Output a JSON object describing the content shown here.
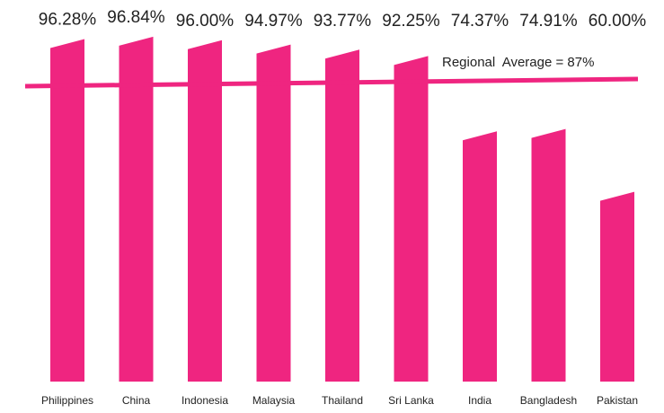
{
  "chart_data": {
    "type": "bar",
    "categories": [
      "Philippines",
      "China",
      "Indonesia",
      "Malaysia",
      "Thailand",
      "Sri Lanka",
      "India",
      "Bangladesh",
      "Pakistan"
    ],
    "values": [
      96.28,
      96.84,
      96.0,
      94.97,
      93.77,
      92.25,
      74.37,
      74.91,
      60.0
    ],
    "value_labels": [
      "96.28%",
      "96.84%",
      "96.00%",
      "94.97%",
      "93.77%",
      "92.25%",
      "74.37%",
      "74.91%",
      "60.00%"
    ],
    "color": "#ef2580",
    "ylim": [
      16,
      100
    ],
    "average": {
      "value": 87,
      "label": "Regional  Average = 87%"
    }
  }
}
